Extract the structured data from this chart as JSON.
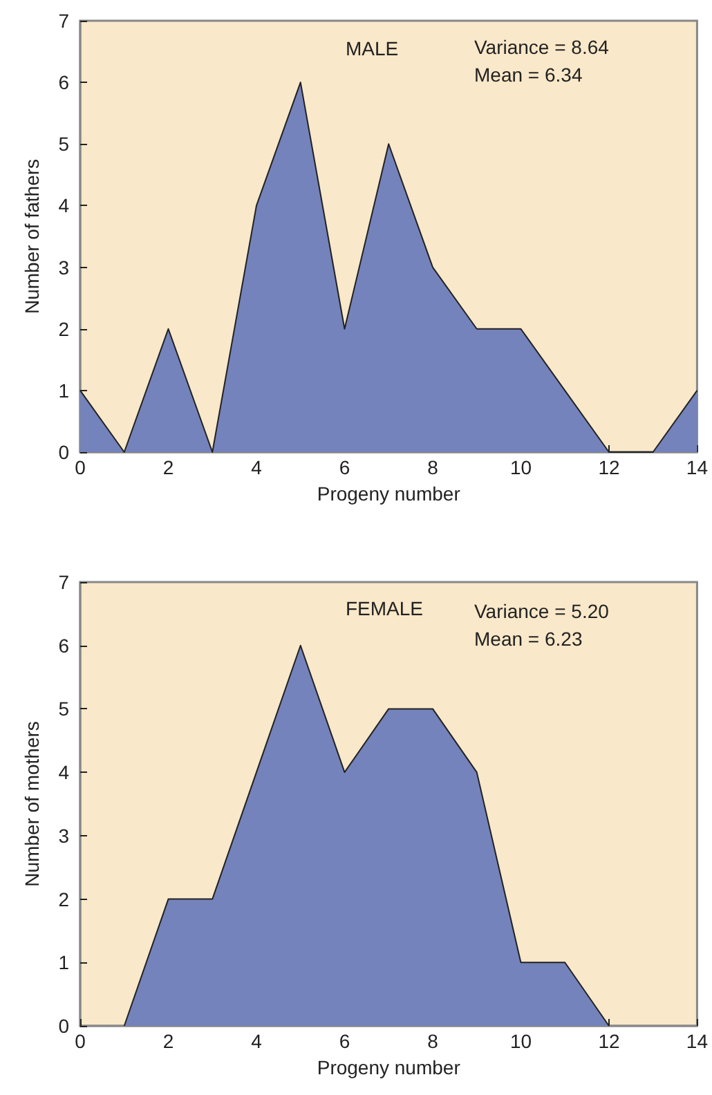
{
  "chart_data": [
    {
      "type": "area",
      "title": "MALE",
      "xlabel": "Progeny number",
      "ylabel": "Number of fathers",
      "annotations": [
        "Variance = 8.64",
        "Mean = 6.34"
      ],
      "x": [
        0,
        1,
        2,
        3,
        4,
        5,
        6,
        7,
        8,
        9,
        10,
        11,
        12,
        13,
        14
      ],
      "series": [
        {
          "color": "#7483bb",
          "values": [
            1,
            0,
            2,
            0,
            4,
            6,
            2,
            5,
            3,
            2,
            2,
            1,
            0,
            0,
            1
          ]
        }
      ],
      "xlim": [
        0,
        14
      ],
      "xticks": [
        0,
        2,
        4,
        6,
        8,
        10,
        12,
        14
      ],
      "ylim": [
        0,
        7
      ],
      "yticks": [
        0,
        1,
        2,
        3,
        4,
        5,
        6,
        7
      ],
      "grid": false,
      "marker": "none",
      "line_style": "solid"
    },
    {
      "type": "area",
      "title": "FEMALE",
      "xlabel": "Progeny number",
      "ylabel": "Number of mothers",
      "annotations": [
        "Variance = 5.20",
        "Mean = 6.23"
      ],
      "x": [
        1,
        2,
        3,
        4,
        5,
        6,
        7,
        8,
        9,
        10,
        11,
        12
      ],
      "series": [
        {
          "color": "#7483bb",
          "values": [
            0,
            2,
            2,
            4,
            6,
            4,
            5,
            5,
            4,
            1,
            1,
            0
          ]
        }
      ],
      "xlim": [
        0,
        14
      ],
      "xticks": [
        0,
        2,
        4,
        6,
        8,
        10,
        12,
        14
      ],
      "ylim": [
        0,
        7
      ],
      "yticks": [
        0,
        1,
        2,
        3,
        4,
        5,
        6,
        7
      ],
      "grid": false,
      "marker": "none",
      "line_style": "solid"
    }
  ]
}
